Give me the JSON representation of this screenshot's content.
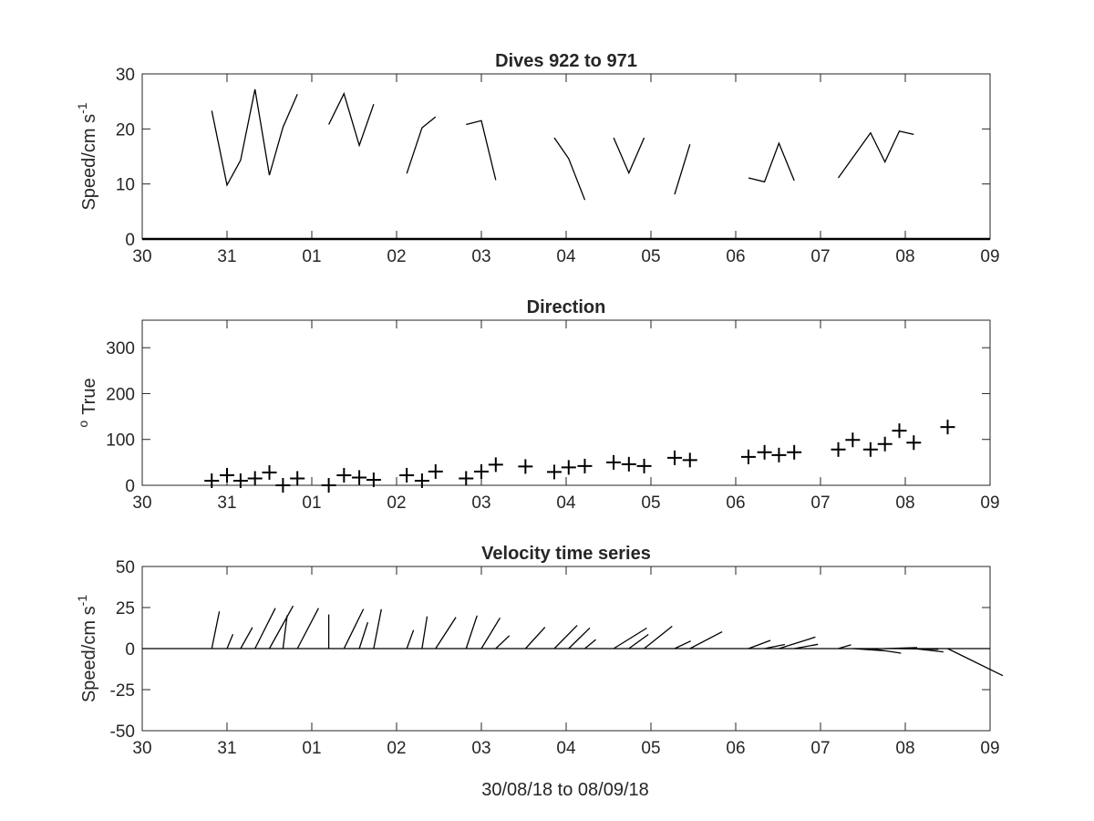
{
  "colors": {
    "background": "#ffffff",
    "axes": "#262626",
    "data": "#000000"
  },
  "x_ticks": [
    "30",
    "31",
    "01",
    "02",
    "03",
    "04",
    "05",
    "06",
    "07",
    "08",
    "09"
  ],
  "x_range_days": [
    0,
    10
  ],
  "xlabel": "30/08/18 to 08/09/18",
  "chart_data": [
    {
      "type": "line",
      "title": "Dives 922 to 971",
      "ylabel": "Speed/cm s",
      "ylabel_sup": "-1",
      "yticks": [
        "0",
        "10",
        "20",
        "30"
      ],
      "ylim": [
        0,
        30
      ],
      "grid": false,
      "x_units": "days since 30 Aug",
      "series": [
        [
          [
            0.82,
            23.3
          ],
          [
            1.0,
            9.8
          ],
          [
            1.16,
            14.3
          ],
          [
            1.33,
            27.2
          ],
          [
            1.5,
            11.6
          ],
          [
            1.66,
            20.3
          ],
          [
            1.83,
            26.3
          ]
        ],
        [
          [
            2.2,
            20.8
          ],
          [
            2.38,
            26.4
          ],
          [
            2.56,
            17.0
          ],
          [
            2.73,
            24.5
          ]
        ],
        [
          [
            3.12,
            11.9
          ],
          [
            3.3,
            20.2
          ],
          [
            3.46,
            22.2
          ]
        ],
        [
          [
            3.82,
            20.8
          ],
          [
            4.0,
            21.5
          ],
          [
            4.17,
            10.7
          ]
        ],
        [
          [
            4.86,
            18.4
          ],
          [
            5.03,
            14.6
          ],
          [
            5.22,
            7.1
          ]
        ],
        [
          [
            5.56,
            18.4
          ],
          [
            5.74,
            12.0
          ],
          [
            5.92,
            18.4
          ]
        ],
        [
          [
            6.28,
            8.1
          ],
          [
            6.46,
            17.2
          ]
        ],
        [
          [
            7.15,
            11.1
          ],
          [
            7.34,
            10.4
          ],
          [
            7.51,
            17.4
          ],
          [
            7.69,
            10.6
          ]
        ],
        [
          [
            8.21,
            11.1
          ],
          [
            8.59,
            19.3
          ],
          [
            8.76,
            14.0
          ],
          [
            8.93,
            19.6
          ],
          [
            9.1,
            19.0
          ]
        ]
      ]
    },
    {
      "type": "scatter",
      "title": "Direction",
      "ylabel": "True",
      "ylabel_prefix": "o",
      "yticks": [
        "0",
        "100",
        "200",
        "300"
      ],
      "ylim": [
        0,
        360
      ],
      "grid": false,
      "marker": "+",
      "x_units": "days since 30 Aug",
      "points": [
        [
          0.82,
          10
        ],
        [
          1.0,
          22
        ],
        [
          1.16,
          10
        ],
        [
          1.33,
          15
        ],
        [
          1.5,
          28
        ],
        [
          1.66,
          0
        ],
        [
          1.83,
          15
        ],
        [
          2.2,
          0
        ],
        [
          2.38,
          22
        ],
        [
          2.56,
          17
        ],
        [
          2.73,
          12
        ],
        [
          3.12,
          22
        ],
        [
          3.3,
          10
        ],
        [
          3.46,
          30
        ],
        [
          3.82,
          15
        ],
        [
          4.0,
          30
        ],
        [
          4.17,
          45
        ],
        [
          4.52,
          41
        ],
        [
          4.86,
          29
        ],
        [
          5.03,
          39
        ],
        [
          5.22,
          42
        ],
        [
          5.56,
          50
        ],
        [
          5.74,
          46
        ],
        [
          5.92,
          42
        ],
        [
          6.28,
          60
        ],
        [
          6.46,
          55
        ],
        [
          7.15,
          62
        ],
        [
          7.34,
          72
        ],
        [
          7.51,
          66
        ],
        [
          7.69,
          72
        ],
        [
          8.21,
          78
        ],
        [
          8.38,
          99
        ],
        [
          8.59,
          78
        ],
        [
          8.76,
          90
        ],
        [
          8.93,
          119
        ],
        [
          9.1,
          93
        ],
        [
          9.5,
          127
        ]
      ]
    },
    {
      "type": "line",
      "title": "Velocity time series",
      "subtype": "stick plot",
      "ylabel": "Speed/cm s",
      "ylabel_sup": "-1",
      "yticks": [
        "50",
        "25",
        "0",
        "-25",
        "-50"
      ],
      "ylim": [
        -50,
        50
      ],
      "grid": false,
      "zero_line": true,
      "x_units": "days since 30 Aug",
      "sticks": [
        [
          0.82,
          0.09,
          22.6
        ],
        [
          1.0,
          0.07,
          8.8
        ],
        [
          1.16,
          0.14,
          12.9
        ],
        [
          1.33,
          0.24,
          24.6
        ],
        [
          1.5,
          0.28,
          26.0
        ],
        [
          1.66,
          0.05,
          20.2
        ],
        [
          1.83,
          0.25,
          24.6
        ],
        [
          2.2,
          0.0,
          20.8
        ],
        [
          2.38,
          0.23,
          24.1
        ],
        [
          2.56,
          0.1,
          16.0
        ],
        [
          2.73,
          0.09,
          24.0
        ],
        [
          3.12,
          0.08,
          11.3
        ],
        [
          3.3,
          0.06,
          19.6
        ],
        [
          3.46,
          0.24,
          19.1
        ],
        [
          3.82,
          0.13,
          20.1
        ],
        [
          4.0,
          0.22,
          18.7
        ],
        [
          4.17,
          0.16,
          7.9
        ],
        [
          4.52,
          0.23,
          13.0
        ],
        [
          4.86,
          0.27,
          14.1
        ],
        [
          5.03,
          0.25,
          12.6
        ],
        [
          5.22,
          0.13,
          5.5
        ],
        [
          5.56,
          0.39,
          12.5
        ],
        [
          5.74,
          0.23,
          8.6
        ],
        [
          5.92,
          0.33,
          13.6
        ],
        [
          6.28,
          0.19,
          4.6
        ],
        [
          6.46,
          0.38,
          10.2
        ],
        [
          7.15,
          0.26,
          5.0
        ],
        [
          7.34,
          0.24,
          2.5
        ],
        [
          7.51,
          0.43,
          7.0
        ],
        [
          7.69,
          0.28,
          2.6
        ],
        [
          8.21,
          0.15,
          2.3
        ],
        [
          8.38,
          0.37,
          -1.3
        ],
        [
          8.59,
          0.36,
          -2.8
        ],
        [
          8.76,
          0.38,
          0.6
        ],
        [
          8.93,
          0.46,
          -0.5
        ],
        [
          9.1,
          0.35,
          -2.0
        ],
        [
          9.5,
          0.65,
          -16.5
        ]
      ]
    }
  ]
}
